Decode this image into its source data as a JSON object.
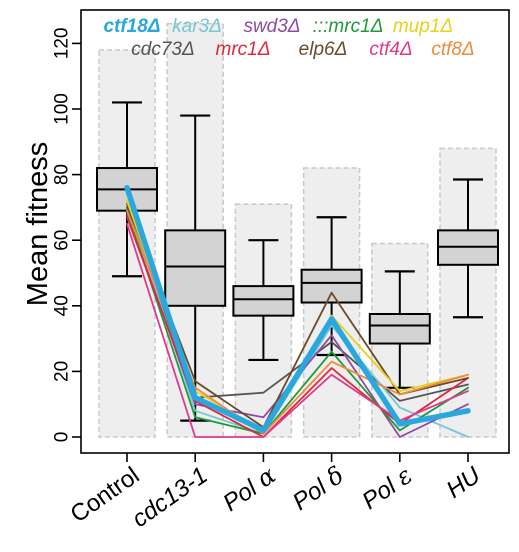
{
  "chart_data": {
    "type": "boxplot",
    "title": "",
    "xlabel": "",
    "ylabel": "Mean fitness",
    "ylim": [
      -5,
      130
    ],
    "y_ticks": [
      0,
      20,
      40,
      60,
      80,
      100,
      120
    ],
    "categories": [
      "Control",
      "cdc13-1",
      "Pol α",
      "Pol δ",
      "Pol ε",
      "HU"
    ],
    "category_parts": [
      {
        "base": "Control",
        "greek": ""
      },
      {
        "base": "cdc13-1",
        "greek": ""
      },
      {
        "base": "Pol ",
        "greek": "α"
      },
      {
        "base": "Pol ",
        "greek": "δ"
      },
      {
        "base": "Pol ",
        "greek": "ε"
      },
      {
        "base": "HU",
        "greek": ""
      }
    ],
    "range_bars": [
      118,
      126,
      71,
      82,
      59,
      88
    ],
    "boxes": [
      {
        "whisker_low": 49,
        "q1": 69,
        "median": 75.5,
        "q3": 82,
        "whisker_high": 102
      },
      {
        "whisker_low": 5,
        "q1": 40,
        "median": 52,
        "q3": 63,
        "whisker_high": 98
      },
      {
        "whisker_low": 23.5,
        "q1": 37,
        "median": 42,
        "q3": 46,
        "whisker_high": 60
      },
      {
        "whisker_low": 25,
        "q1": 41,
        "median": 47,
        "q3": 51,
        "whisker_high": 67
      },
      {
        "whisker_low": 15,
        "q1": 28.5,
        "median": 34,
        "q3": 37.5,
        "whisker_high": 50.5
      },
      {
        "whisker_low": 36.5,
        "q1": 52.5,
        "median": 58,
        "q3": 63,
        "whisker_high": 78.5
      }
    ],
    "series": [
      {
        "name": "cdc73Δ",
        "color": "#555555",
        "values": [
          70,
          12,
          13.5,
          29,
          11,
          16
        ]
      },
      {
        "name": "kar3Δ",
        "color": "#79c5d6",
        "values": [
          72,
          8,
          1,
          34,
          9,
          0
        ]
      },
      {
        "name": "swd3Δ",
        "color": "#8e4ba6",
        "values": [
          68,
          10,
          6,
          31,
          0,
          10
        ]
      },
      {
        "name": ":::mrc1Δ",
        "color": "#1f9a3a",
        "values": [
          69,
          6,
          1,
          26,
          2,
          15
        ]
      },
      {
        "name": "mrc1Δ",
        "color": "#e0283a",
        "values": [
          67,
          11,
          0,
          21,
          4,
          18
        ]
      },
      {
        "name": "elp6Δ",
        "color": "#6b4a2b",
        "values": [
          71,
          17,
          3,
          44,
          13,
          18
        ]
      },
      {
        "name": "ctf4Δ",
        "color": "#e03a8c",
        "values": [
          65,
          0,
          0,
          19,
          5,
          14
        ]
      },
      {
        "name": "mup1Δ",
        "color": "#e6d21a",
        "values": [
          72,
          14,
          2,
          37,
          14,
          19
        ]
      },
      {
        "name": "ctf8Δ",
        "color": "#f08a3c",
        "values": [
          69,
          15,
          1,
          23,
          13,
          19
        ]
      },
      {
        "name": "ctf18Δ",
        "color": "#29a8df",
        "values": [
          76,
          12,
          2,
          36,
          4,
          8
        ]
      }
    ],
    "legend": {
      "placement": "top",
      "row1": [
        {
          "name": "ctf18Δ",
          "color": "#29a8df"
        },
        {
          "name": "kar3Δ",
          "color": "#79c5d6"
        },
        {
          "name": "swd3Δ",
          "color": "#8e4ba6"
        },
        {
          "name": ":::mrc1Δ",
          "color": "#1f9a3a"
        },
        {
          "name": "mup1Δ",
          "color": "#e6d21a"
        }
      ],
      "row2": [
        {
          "name": "cdc73Δ",
          "color": "#555555"
        },
        {
          "name": "mrc1Δ",
          "color": "#e0283a"
        },
        {
          "name": "elp6Δ",
          "color": "#6b4a2b"
        },
        {
          "name": "ctf4Δ",
          "color": "#e03a8c"
        },
        {
          "name": "ctf8Δ",
          "color": "#f08a3c"
        }
      ]
    },
    "highlight_series": "ctf18Δ",
    "colors": {
      "box_fill": "#d3d3d3",
      "range_bar_fill": "#eeeeee",
      "range_bar_stroke": "#c8c8c8",
      "axis": "#000000"
    }
  }
}
